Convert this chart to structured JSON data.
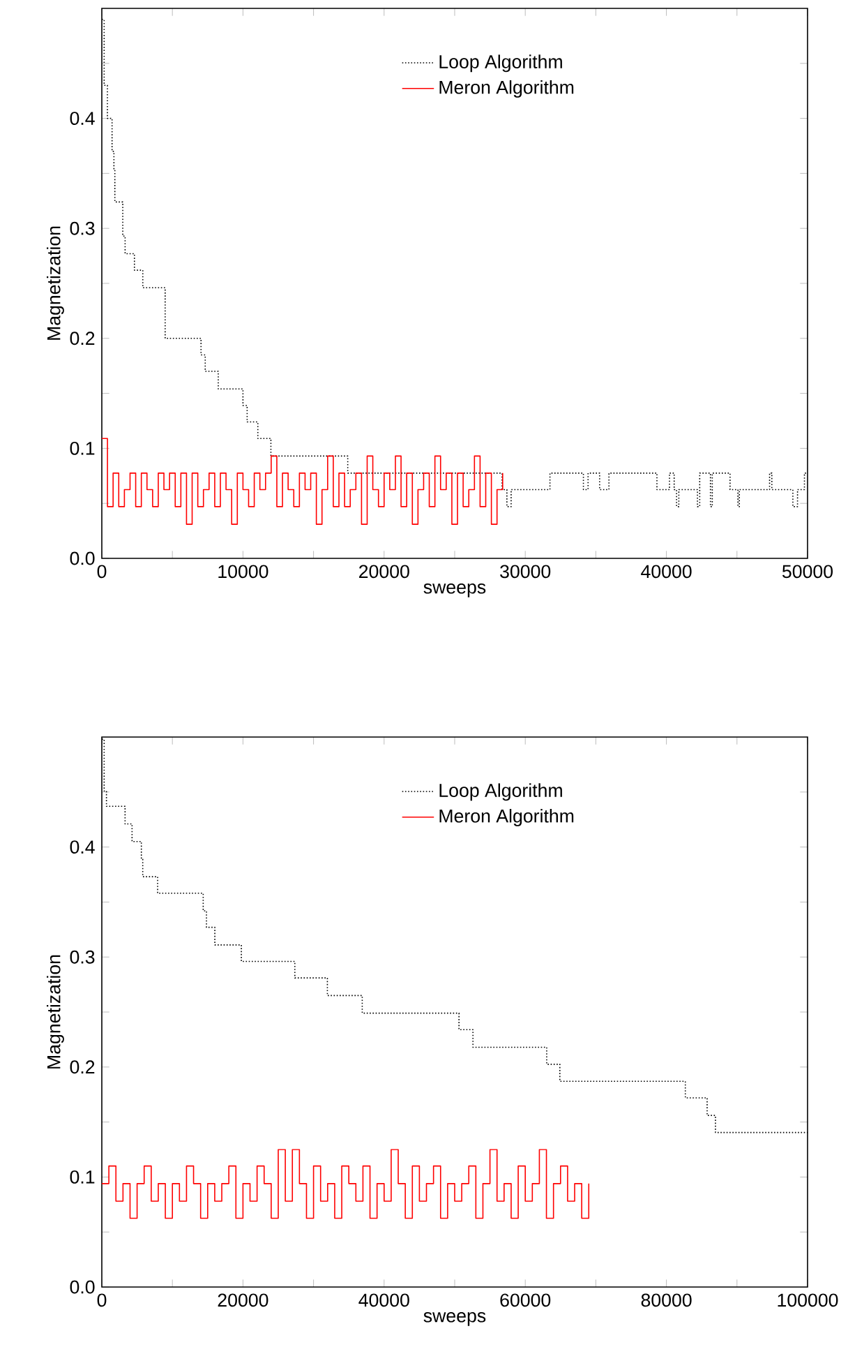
{
  "chart_data": [
    {
      "type": "step",
      "xlabel": "sweeps",
      "ylabel": "Magnetization",
      "legend": "top",
      "grid": false,
      "xlim": [
        0,
        50000
      ],
      "ylim": [
        0,
        0.5
      ],
      "xticks": [
        0,
        {
          "value": 5000,
          "label": null
        },
        10000,
        {
          "value": 15000,
          "label": null
        },
        20000,
        {
          "value": 25000,
          "label": null
        },
        30000,
        {
          "value": 35000,
          "label": null
        },
        40000,
        {
          "value": 45000,
          "label": null
        },
        50000
      ],
      "yticks": [
        {
          "value": 0,
          "label": "0.0"
        },
        {
          "value": 0.05,
          "label": null
        },
        {
          "value": 0.1,
          "label": "0.1"
        },
        {
          "value": 0.15,
          "label": null
        },
        {
          "value": 0.2,
          "label": "0.2"
        },
        {
          "value": 0.25,
          "label": null
        },
        {
          "value": 0.3,
          "label": "0.3"
        },
        {
          "value": 0.35,
          "label": null
        },
        {
          "value": 0.4,
          "label": "0.4"
        },
        {
          "value": 0.45,
          "label": null
        }
      ],
      "series": [
        {
          "name": "Loop Algorithm",
          "color": "#000000",
          "line_style": "dotted",
          "x": [
            0,
            165,
            396,
            726,
            858,
            924,
            1485,
            1650,
            2310,
            2904,
            4488,
            7029,
            7326,
            8250,
            10000,
            10296,
            11055,
            11979,
            17424,
            28355,
            28700,
            29000,
            31750,
            34120,
            34450,
            35270,
            35930,
            39330,
            40220,
            40550,
            40720,
            40880,
            42200,
            42360,
            43120,
            43250,
            44510,
            45070,
            45170,
            47310,
            47470,
            48960,
            49290,
            49780,
            50000
          ],
          "values": [
            0.49,
            0.43,
            0.4,
            0.37,
            0.353,
            0.324,
            0.293,
            0.277,
            0.262,
            0.246,
            0.2,
            0.185,
            0.17,
            0.154,
            0.139,
            0.124,
            0.109,
            0.093,
            0.0775,
            0.0625,
            0.047,
            0.0625,
            0.0775,
            0.0625,
            0.0775,
            0.0625,
            0.0775,
            0.0625,
            0.0775,
            0.0625,
            0.047,
            0.0625,
            0.047,
            0.0775,
            0.047,
            0.0775,
            0.0625,
            0.047,
            0.0625,
            0.0775,
            0.0625,
            0.047,
            0.0625,
            0.0775,
            0.0775
          ]
        },
        {
          "name": "Meron Algorithm",
          "color": "#ff0000",
          "line_style": "solid",
          "x": [
            0,
            400,
            800,
            1200,
            1600,
            2000,
            2400,
            2800,
            3200,
            3600,
            4000,
            4400,
            4800,
            5200,
            5600,
            6000,
            6400,
            6800,
            7200,
            7600,
            8000,
            8400,
            8800,
            9200,
            9600,
            10000,
            10400,
            10800,
            11200,
            11600,
            12000,
            12400,
            12800,
            13200,
            13600,
            14000,
            14400,
            14800,
            15200,
            15600,
            16000,
            16400,
            16800,
            17200,
            17600,
            18000,
            18400,
            18800,
            19200,
            19600,
            20000,
            20400,
            20800,
            21200,
            21600,
            22000,
            22400,
            22800,
            23200,
            23600,
            24000,
            24400,
            24800,
            25200,
            25600,
            26000,
            26400,
            26800,
            27200,
            27600,
            28000,
            28400
          ],
          "values": [
            0.109,
            0.047,
            0.0775,
            0.047,
            0.0625,
            0.0775,
            0.047,
            0.0775,
            0.0625,
            0.047,
            0.0775,
            0.0625,
            0.0775,
            0.047,
            0.0775,
            0.031,
            0.0775,
            0.047,
            0.0625,
            0.0775,
            0.047,
            0.0775,
            0.0625,
            0.031,
            0.0775,
            0.0625,
            0.047,
            0.0775,
            0.0625,
            0.0775,
            0.093,
            0.047,
            0.0775,
            0.0625,
            0.047,
            0.0775,
            0.0625,
            0.0775,
            0.031,
            0.0625,
            0.093,
            0.047,
            0.0775,
            0.047,
            0.0625,
            0.0775,
            0.031,
            0.093,
            0.0625,
            0.047,
            0.0775,
            0.0625,
            0.093,
            0.047,
            0.0775,
            0.031,
            0.0625,
            0.0775,
            0.047,
            0.093,
            0.0625,
            0.0775,
            0.031,
            0.0775,
            0.047,
            0.0625,
            0.093,
            0.047,
            0.0775,
            0.031,
            0.0625,
            0.0775
          ]
        }
      ]
    },
    {
      "type": "step",
      "xlabel": "sweeps",
      "ylabel": "Magnetization",
      "legend": "top",
      "grid": false,
      "xlim": [
        0,
        100000
      ],
      "ylim": [
        0,
        0.5
      ],
      "xticks": [
        0,
        {
          "value": 10000,
          "label": null
        },
        20000,
        {
          "value": 30000,
          "label": null
        },
        40000,
        {
          "value": 50000,
          "label": null
        },
        60000,
        {
          "value": 70000,
          "label": null
        },
        80000,
        {
          "value": 90000,
          "label": null
        },
        100000
      ],
      "yticks": [
        {
          "value": 0,
          "label": "0.0"
        },
        {
          "value": 0.05,
          "label": null
        },
        {
          "value": 0.1,
          "label": "0.1"
        },
        {
          "value": 0.15,
          "label": null
        },
        {
          "value": 0.2,
          "label": "0.2"
        },
        {
          "value": 0.25,
          "label": null
        },
        {
          "value": 0.3,
          "label": "0.3"
        },
        {
          "value": 0.35,
          "label": null
        },
        {
          "value": 0.4,
          "label": "0.4"
        },
        {
          "value": 0.45,
          "label": null
        }
      ],
      "series": [
        {
          "name": "Loop Algorithm",
          "color": "#000000",
          "line_style": "dotted",
          "x": [
            0,
            330,
            659,
            3295,
            4284,
            5602,
            5800,
            7908,
            14366,
            14828,
            16014,
            19770,
            27350,
            31960,
            36900,
            50610,
            52590,
            63040,
            64900,
            82680,
            85770,
            86950,
            100000
          ],
          "values": [
            0.498,
            0.451,
            0.437,
            0.421,
            0.405,
            0.389,
            0.373,
            0.358,
            0.342,
            0.327,
            0.311,
            0.296,
            0.281,
            0.265,
            0.249,
            0.234,
            0.218,
            0.2025,
            0.187,
            0.172,
            0.156,
            0.1405,
            0.1405
          ]
        },
        {
          "name": "Meron Algorithm",
          "color": "#ff0000",
          "line_style": "solid",
          "x": [
            0,
            1000,
            2000,
            3000,
            4000,
            5000,
            6000,
            7000,
            8000,
            9000,
            10000,
            11000,
            12000,
            13000,
            14000,
            15000,
            16000,
            17000,
            18000,
            19000,
            20000,
            21000,
            22000,
            23000,
            24000,
            25000,
            26000,
            27000,
            28000,
            29000,
            30000,
            31000,
            32000,
            33000,
            34000,
            35000,
            36000,
            37000,
            38000,
            39000,
            40000,
            41000,
            42000,
            43000,
            44000,
            45000,
            46000,
            47000,
            48000,
            49000,
            50000,
            51000,
            52000,
            53000,
            54000,
            55000,
            56000,
            57000,
            58000,
            59000,
            60000,
            61000,
            62000,
            63000,
            64000,
            65000,
            66000,
            67000,
            68000,
            69000
          ],
          "values": [
            0.094,
            0.11,
            0.078,
            0.094,
            0.0625,
            0.094,
            0.11,
            0.078,
            0.094,
            0.0625,
            0.094,
            0.078,
            0.11,
            0.094,
            0.0625,
            0.094,
            0.078,
            0.094,
            0.11,
            0.0625,
            0.094,
            0.078,
            0.11,
            0.094,
            0.0625,
            0.125,
            0.078,
            0.125,
            0.094,
            0.0625,
            0.11,
            0.078,
            0.094,
            0.0625,
            0.11,
            0.094,
            0.078,
            0.11,
            0.0625,
            0.094,
            0.078,
            0.125,
            0.094,
            0.0625,
            0.11,
            0.078,
            0.094,
            0.11,
            0.0625,
            0.094,
            0.078,
            0.094,
            0.11,
            0.0625,
            0.094,
            0.125,
            0.078,
            0.094,
            0.0625,
            0.11,
            0.078,
            0.094,
            0.125,
            0.0625,
            0.094,
            0.11,
            0.078,
            0.094,
            0.0625,
            0.094
          ]
        }
      ]
    }
  ]
}
